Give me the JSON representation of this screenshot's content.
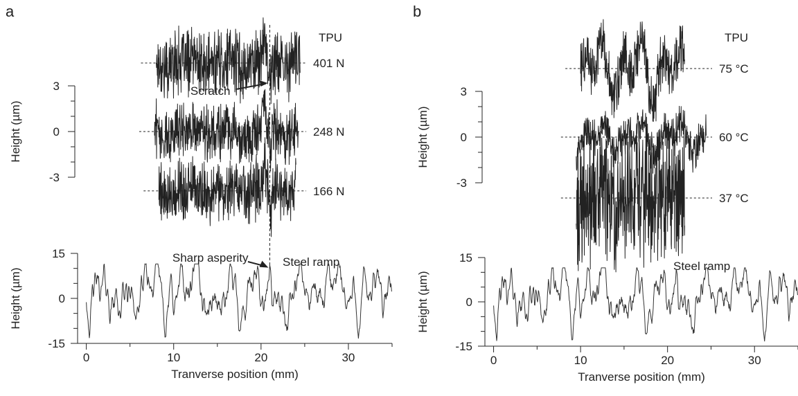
{
  "figure": {
    "panel_a_letter": "a",
    "panel_b_letter": "b"
  },
  "chart_data": [
    {
      "type": "line",
      "panel": "a",
      "group_label": "TPU",
      "ylabel": "Height (µm)",
      "yticks": [
        "3",
        "0",
        "-3"
      ],
      "ylim": [
        -3,
        3
      ],
      "annotations": {
        "scratch": "Scratch"
      },
      "series": [
        {
          "label": "401 N",
          "x_range": [
            8,
            24.5
          ],
          "offset_um": 4.5,
          "scratch_x": 21
        },
        {
          "label": "248 N",
          "x_range": [
            7.8,
            24.3
          ],
          "offset_um": 0,
          "scratch_x": 21
        },
        {
          "label": "166 N",
          "x_range": [
            8.3,
            24
          ],
          "offset_um": -3.9,
          "scratch_x": 21
        }
      ]
    },
    {
      "type": "line",
      "panel": "a",
      "title": "Steel ramp",
      "xlabel": "Tranverse position (mm)",
      "ylabel": "Height (µm)",
      "xticks": [
        "0",
        "10",
        "20",
        "30"
      ],
      "yticks": [
        "15",
        "0",
        "-15"
      ],
      "xlim": [
        -1,
        35
      ],
      "ylim": [
        -15,
        15
      ],
      "annotations": {
        "asperity": "Sharp asperity"
      },
      "asperity_x": 21,
      "asperity_height_um": 10
    },
    {
      "type": "line",
      "panel": "b",
      "group_label": "TPU",
      "ylabel": "Height (µm)",
      "yticks": [
        "3",
        "0",
        "-3"
      ],
      "ylim": [
        -3,
        3
      ],
      "series": [
        {
          "label": "75 °C",
          "x_range": [
            10,
            22
          ],
          "offset_um": 4.5
        },
        {
          "label": "60 °C",
          "x_range": [
            9.5,
            24.5
          ],
          "offset_um": 0
        },
        {
          "label": "37 °C",
          "x_range": [
            9.5,
            22
          ],
          "offset_um": -4
        }
      ]
    },
    {
      "type": "line",
      "panel": "b",
      "title": "Steel ramp",
      "xlabel": "Tranverse position (mm)",
      "ylabel": "Height (µm)",
      "xticks": [
        "0",
        "10",
        "20",
        "30"
      ],
      "yticks": [
        "15",
        "0",
        "-15"
      ],
      "xlim": [
        -1,
        35
      ],
      "ylim": [
        -15,
        15
      ]
    }
  ]
}
